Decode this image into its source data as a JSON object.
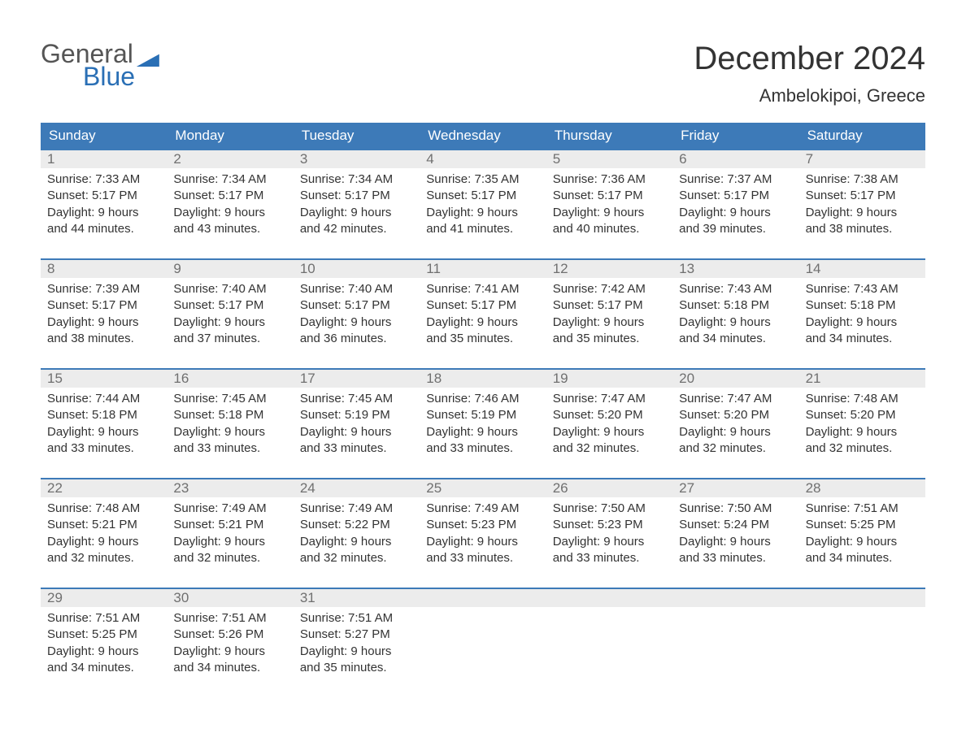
{
  "logo": {
    "word1": "General",
    "word2": "Blue"
  },
  "title": "December 2024",
  "location": "Ambelokipoi, Greece",
  "colors": {
    "accent": "#3d7ab8",
    "row_bg": "#ececec",
    "text": "#333333",
    "muted": "#707070",
    "bg": "#ffffff"
  },
  "day_headers": [
    "Sunday",
    "Monday",
    "Tuesday",
    "Wednesday",
    "Thursday",
    "Friday",
    "Saturday"
  ],
  "weeks": [
    [
      {
        "n": "1",
        "sr": "Sunrise: 7:33 AM",
        "ss": "Sunset: 5:17 PM",
        "d1": "Daylight: 9 hours",
        "d2": "and 44 minutes."
      },
      {
        "n": "2",
        "sr": "Sunrise: 7:34 AM",
        "ss": "Sunset: 5:17 PM",
        "d1": "Daylight: 9 hours",
        "d2": "and 43 minutes."
      },
      {
        "n": "3",
        "sr": "Sunrise: 7:34 AM",
        "ss": "Sunset: 5:17 PM",
        "d1": "Daylight: 9 hours",
        "d2": "and 42 minutes."
      },
      {
        "n": "4",
        "sr": "Sunrise: 7:35 AM",
        "ss": "Sunset: 5:17 PM",
        "d1": "Daylight: 9 hours",
        "d2": "and 41 minutes."
      },
      {
        "n": "5",
        "sr": "Sunrise: 7:36 AM",
        "ss": "Sunset: 5:17 PM",
        "d1": "Daylight: 9 hours",
        "d2": "and 40 minutes."
      },
      {
        "n": "6",
        "sr": "Sunrise: 7:37 AM",
        "ss": "Sunset: 5:17 PM",
        "d1": "Daylight: 9 hours",
        "d2": "and 39 minutes."
      },
      {
        "n": "7",
        "sr": "Sunrise: 7:38 AM",
        "ss": "Sunset: 5:17 PM",
        "d1": "Daylight: 9 hours",
        "d2": "and 38 minutes."
      }
    ],
    [
      {
        "n": "8",
        "sr": "Sunrise: 7:39 AM",
        "ss": "Sunset: 5:17 PM",
        "d1": "Daylight: 9 hours",
        "d2": "and 38 minutes."
      },
      {
        "n": "9",
        "sr": "Sunrise: 7:40 AM",
        "ss": "Sunset: 5:17 PM",
        "d1": "Daylight: 9 hours",
        "d2": "and 37 minutes."
      },
      {
        "n": "10",
        "sr": "Sunrise: 7:40 AM",
        "ss": "Sunset: 5:17 PM",
        "d1": "Daylight: 9 hours",
        "d2": "and 36 minutes."
      },
      {
        "n": "11",
        "sr": "Sunrise: 7:41 AM",
        "ss": "Sunset: 5:17 PM",
        "d1": "Daylight: 9 hours",
        "d2": "and 35 minutes."
      },
      {
        "n": "12",
        "sr": "Sunrise: 7:42 AM",
        "ss": "Sunset: 5:17 PM",
        "d1": "Daylight: 9 hours",
        "d2": "and 35 minutes."
      },
      {
        "n": "13",
        "sr": "Sunrise: 7:43 AM",
        "ss": "Sunset: 5:18 PM",
        "d1": "Daylight: 9 hours",
        "d2": "and 34 minutes."
      },
      {
        "n": "14",
        "sr": "Sunrise: 7:43 AM",
        "ss": "Sunset: 5:18 PM",
        "d1": "Daylight: 9 hours",
        "d2": "and 34 minutes."
      }
    ],
    [
      {
        "n": "15",
        "sr": "Sunrise: 7:44 AM",
        "ss": "Sunset: 5:18 PM",
        "d1": "Daylight: 9 hours",
        "d2": "and 33 minutes."
      },
      {
        "n": "16",
        "sr": "Sunrise: 7:45 AM",
        "ss": "Sunset: 5:18 PM",
        "d1": "Daylight: 9 hours",
        "d2": "and 33 minutes."
      },
      {
        "n": "17",
        "sr": "Sunrise: 7:45 AM",
        "ss": "Sunset: 5:19 PM",
        "d1": "Daylight: 9 hours",
        "d2": "and 33 minutes."
      },
      {
        "n": "18",
        "sr": "Sunrise: 7:46 AM",
        "ss": "Sunset: 5:19 PM",
        "d1": "Daylight: 9 hours",
        "d2": "and 33 minutes."
      },
      {
        "n": "19",
        "sr": "Sunrise: 7:47 AM",
        "ss": "Sunset: 5:20 PM",
        "d1": "Daylight: 9 hours",
        "d2": "and 32 minutes."
      },
      {
        "n": "20",
        "sr": "Sunrise: 7:47 AM",
        "ss": "Sunset: 5:20 PM",
        "d1": "Daylight: 9 hours",
        "d2": "and 32 minutes."
      },
      {
        "n": "21",
        "sr": "Sunrise: 7:48 AM",
        "ss": "Sunset: 5:20 PM",
        "d1": "Daylight: 9 hours",
        "d2": "and 32 minutes."
      }
    ],
    [
      {
        "n": "22",
        "sr": "Sunrise: 7:48 AM",
        "ss": "Sunset: 5:21 PM",
        "d1": "Daylight: 9 hours",
        "d2": "and 32 minutes."
      },
      {
        "n": "23",
        "sr": "Sunrise: 7:49 AM",
        "ss": "Sunset: 5:21 PM",
        "d1": "Daylight: 9 hours",
        "d2": "and 32 minutes."
      },
      {
        "n": "24",
        "sr": "Sunrise: 7:49 AM",
        "ss": "Sunset: 5:22 PM",
        "d1": "Daylight: 9 hours",
        "d2": "and 32 minutes."
      },
      {
        "n": "25",
        "sr": "Sunrise: 7:49 AM",
        "ss": "Sunset: 5:23 PM",
        "d1": "Daylight: 9 hours",
        "d2": "and 33 minutes."
      },
      {
        "n": "26",
        "sr": "Sunrise: 7:50 AM",
        "ss": "Sunset: 5:23 PM",
        "d1": "Daylight: 9 hours",
        "d2": "and 33 minutes."
      },
      {
        "n": "27",
        "sr": "Sunrise: 7:50 AM",
        "ss": "Sunset: 5:24 PM",
        "d1": "Daylight: 9 hours",
        "d2": "and 33 minutes."
      },
      {
        "n": "28",
        "sr": "Sunrise: 7:51 AM",
        "ss": "Sunset: 5:25 PM",
        "d1": "Daylight: 9 hours",
        "d2": "and 34 minutes."
      }
    ],
    [
      {
        "n": "29",
        "sr": "Sunrise: 7:51 AM",
        "ss": "Sunset: 5:25 PM",
        "d1": "Daylight: 9 hours",
        "d2": "and 34 minutes."
      },
      {
        "n": "30",
        "sr": "Sunrise: 7:51 AM",
        "ss": "Sunset: 5:26 PM",
        "d1": "Daylight: 9 hours",
        "d2": "and 34 minutes."
      },
      {
        "n": "31",
        "sr": "Sunrise: 7:51 AM",
        "ss": "Sunset: 5:27 PM",
        "d1": "Daylight: 9 hours",
        "d2": "and 35 minutes."
      },
      {
        "empty": true
      },
      {
        "empty": true
      },
      {
        "empty": true
      },
      {
        "empty": true
      }
    ]
  ]
}
